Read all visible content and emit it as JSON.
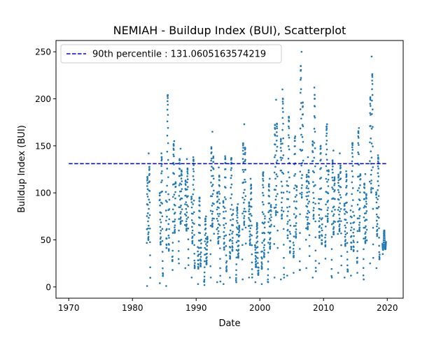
{
  "chart_data": {
    "type": "scatter",
    "title": "NEMIAH - Buildup Index (BUI), Scatterplot",
    "xlabel": "Date",
    "ylabel": "Buildup Index (BUI)",
    "xlim": [
      1968.0,
      2022.5
    ],
    "ylim": [
      -12,
      262
    ],
    "xticks": [
      1970,
      1980,
      1990,
      2000,
      2010,
      2020
    ],
    "yticks": [
      0,
      50,
      100,
      150,
      200,
      250
    ],
    "grid": false,
    "legend_position": "top-left",
    "colors": {
      "points": "#1f77b4",
      "reference_line": "#0000cd"
    },
    "reference_line": {
      "label": "90th percentile : 131.0605163574219",
      "value": 131.0605163574219,
      "x_start": 1970,
      "x_end": 2020
    },
    "seasons": [
      {
        "year": 1982,
        "min": 1,
        "max": 142
      },
      {
        "year": 1984,
        "min": 4,
        "max": 142
      },
      {
        "year": 1985,
        "min": 1,
        "max": 204
      },
      {
        "year": 1986,
        "min": 18,
        "max": 155
      },
      {
        "year": 1987,
        "min": 25,
        "max": 147
      },
      {
        "year": 1988,
        "min": 20,
        "max": 136
      },
      {
        "year": 1989,
        "min": 10,
        "max": 138
      },
      {
        "year": 1990,
        "min": 3,
        "max": 95
      },
      {
        "year": 1991,
        "min": 2,
        "max": 75
      },
      {
        "year": 1992,
        "min": 10,
        "max": 165
      },
      {
        "year": 1993,
        "min": 5,
        "max": 127
      },
      {
        "year": 1994,
        "min": 3,
        "max": 139
      },
      {
        "year": 1995,
        "min": 10,
        "max": 137
      },
      {
        "year": 1996,
        "min": 5,
        "max": 88
      },
      {
        "year": 1997,
        "min": 8,
        "max": 173
      },
      {
        "year": 1998,
        "min": 10,
        "max": 115
      },
      {
        "year": 1999,
        "min": 5,
        "max": 68
      },
      {
        "year": 2000,
        "min": 3,
        "max": 122
      },
      {
        "year": 2001,
        "min": 5,
        "max": 115
      },
      {
        "year": 2002,
        "min": 10,
        "max": 199
      },
      {
        "year": 2003,
        "min": 8,
        "max": 210
      },
      {
        "year": 2004,
        "min": 12,
        "max": 181
      },
      {
        "year": 2005,
        "min": 15,
        "max": 160
      },
      {
        "year": 2006,
        "min": 18,
        "max": 250
      },
      {
        "year": 2007,
        "min": 20,
        "max": 138
      },
      {
        "year": 2008,
        "min": 10,
        "max": 212
      },
      {
        "year": 2009,
        "min": 25,
        "max": 150
      },
      {
        "year": 2010,
        "min": 30,
        "max": 173
      },
      {
        "year": 2011,
        "min": 10,
        "max": 145
      },
      {
        "year": 2012,
        "min": 15,
        "max": 142
      },
      {
        "year": 2013,
        "min": 10,
        "max": 123
      },
      {
        "year": 2014,
        "min": 12,
        "max": 153
      },
      {
        "year": 2015,
        "min": 15,
        "max": 169
      },
      {
        "year": 2016,
        "min": 8,
        "max": 120
      },
      {
        "year": 2017,
        "min": 25,
        "max": 245
      },
      {
        "year": 2018,
        "min": 20,
        "max": 140
      },
      {
        "year": 2019,
        "min": 35,
        "max": 60
      }
    ]
  }
}
